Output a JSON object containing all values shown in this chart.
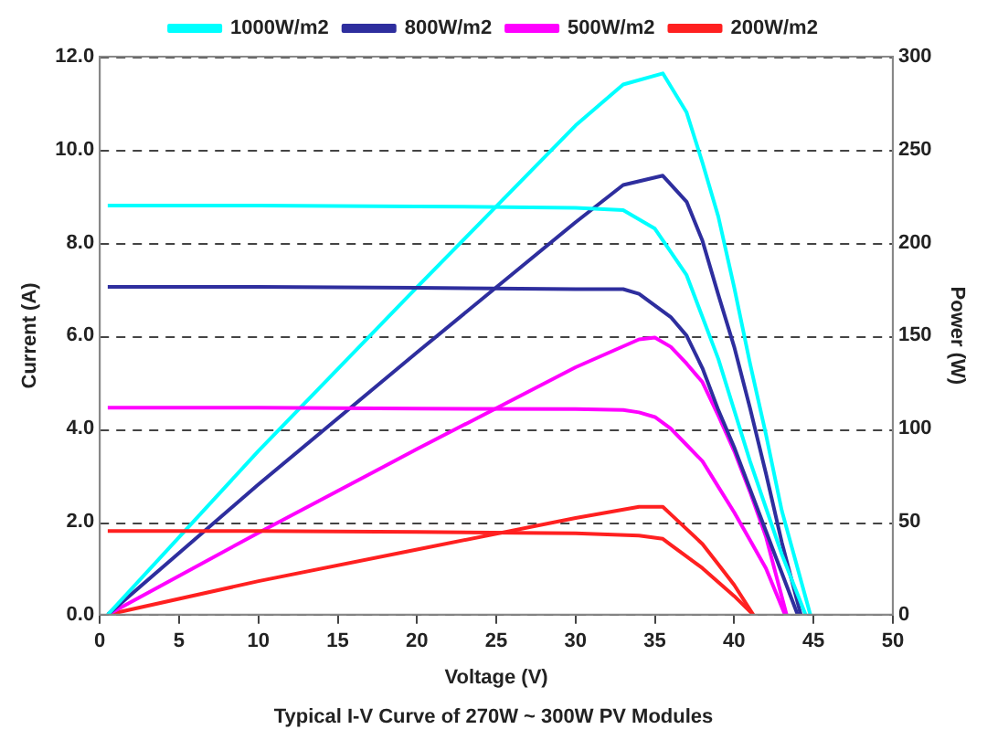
{
  "chart_data": {
    "type": "line",
    "title": "Typical I-V Curve of 270W ~ 300W PV Modules",
    "xlabel": "Voltage (V)",
    "ylabel": "Current (A)",
    "y2label": "Power (W)",
    "xlim": [
      0,
      50
    ],
    "xticks": [
      0,
      5,
      10,
      15,
      20,
      25,
      30,
      35,
      40,
      45,
      50
    ],
    "ylim": [
      0,
      12
    ],
    "yticks": [
      {
        "value": 0,
        "label": "0.0"
      },
      {
        "value": 2,
        "label": "2.0"
      },
      {
        "value": 4,
        "label": "4.0"
      },
      {
        "value": 6,
        "label": "6.0"
      },
      {
        "value": 8,
        "label": "8.0"
      },
      {
        "value": 10,
        "label": "10.0"
      },
      {
        "value": 12,
        "label": "12.0"
      }
    ],
    "y2lim": [
      0,
      300
    ],
    "y2ticks": [
      0,
      50,
      100,
      150,
      200,
      250,
      300
    ],
    "grid": "y",
    "legend": "top",
    "marker": "none",
    "line_style": "solid",
    "series": [
      {
        "name": "1000W/m2",
        "color": "#00ffff",
        "x": [
          0.5,
          10,
          20,
          30,
          33,
          35,
          37,
          38,
          39,
          40,
          41,
          42,
          43,
          44.5
        ],
        "values": [
          8.8,
          8.8,
          8.78,
          8.75,
          8.7,
          8.3,
          7.3,
          6.4,
          5.5,
          4.4,
          3.3,
          2.3,
          1.3,
          0
        ]
      },
      {
        "name": "800W/m2",
        "color": "#2e2e9e",
        "x": [
          0.5,
          10,
          20,
          30,
          33,
          34,
          36,
          37,
          38,
          39,
          40,
          41,
          42,
          43,
          44
        ],
        "values": [
          7.05,
          7.05,
          7.03,
          7.0,
          7.0,
          6.9,
          6.4,
          6.0,
          5.3,
          4.4,
          3.6,
          2.7,
          1.8,
          0.9,
          0
        ]
      },
      {
        "name": "500W/m2",
        "color": "#ff00ff",
        "x": [
          0.5,
          10,
          20,
          30,
          33,
          34,
          35,
          36,
          37,
          38,
          39,
          40,
          41,
          42,
          43.2
        ],
        "values": [
          4.45,
          4.45,
          4.43,
          4.42,
          4.4,
          4.35,
          4.25,
          4.0,
          3.65,
          3.3,
          2.75,
          2.2,
          1.6,
          1.0,
          0
        ]
      },
      {
        "name": "200W/m2",
        "color": "#ff2020",
        "x": [
          0.5,
          10,
          20,
          30,
          34,
          35.5,
          36,
          37,
          38,
          39,
          40,
          41.2
        ],
        "values": [
          1.8,
          1.8,
          1.78,
          1.75,
          1.7,
          1.63,
          1.5,
          1.25,
          1.0,
          0.7,
          0.4,
          0
        ]
      },
      {
        "axis": "y2",
        "color": "#00ffff",
        "x": [
          0.5,
          10,
          20,
          30,
          33,
          35.5,
          37,
          38,
          39,
          40,
          41,
          42,
          43,
          44.8
        ],
        "values": [
          0,
          88,
          176,
          263,
          285,
          291,
          270,
          243,
          214,
          176,
          135,
          97,
          56,
          0
        ]
      },
      {
        "axis": "y2",
        "color": "#2e2e9e",
        "x": [
          0.5,
          10,
          20,
          30,
          33,
          35.5,
          37,
          38,
          39,
          40,
          41,
          42,
          43,
          44.2
        ],
        "values": [
          0,
          70,
          141,
          211,
          231,
          236,
          222,
          201,
          172,
          144,
          111,
          76,
          39,
          0
        ]
      },
      {
        "axis": "y2",
        "color": "#ff00ff",
        "x": [
          0.5,
          10,
          20,
          30,
          34,
          35,
          36,
          37,
          38,
          39,
          40,
          41,
          42,
          43.3
        ],
        "values": [
          0,
          44,
          89,
          133,
          148,
          149,
          144,
          135,
          125,
          107,
          88,
          66,
          42,
          0
        ]
      },
      {
        "axis": "y2",
        "color": "#ff2020",
        "x": [
          0.5,
          10,
          20,
          30,
          34,
          35.5,
          36,
          37,
          38,
          39,
          40,
          41.2
        ],
        "values": [
          0,
          18,
          35,
          52,
          58,
          58,
          54,
          46,
          38,
          27,
          16,
          0
        ]
      }
    ]
  }
}
